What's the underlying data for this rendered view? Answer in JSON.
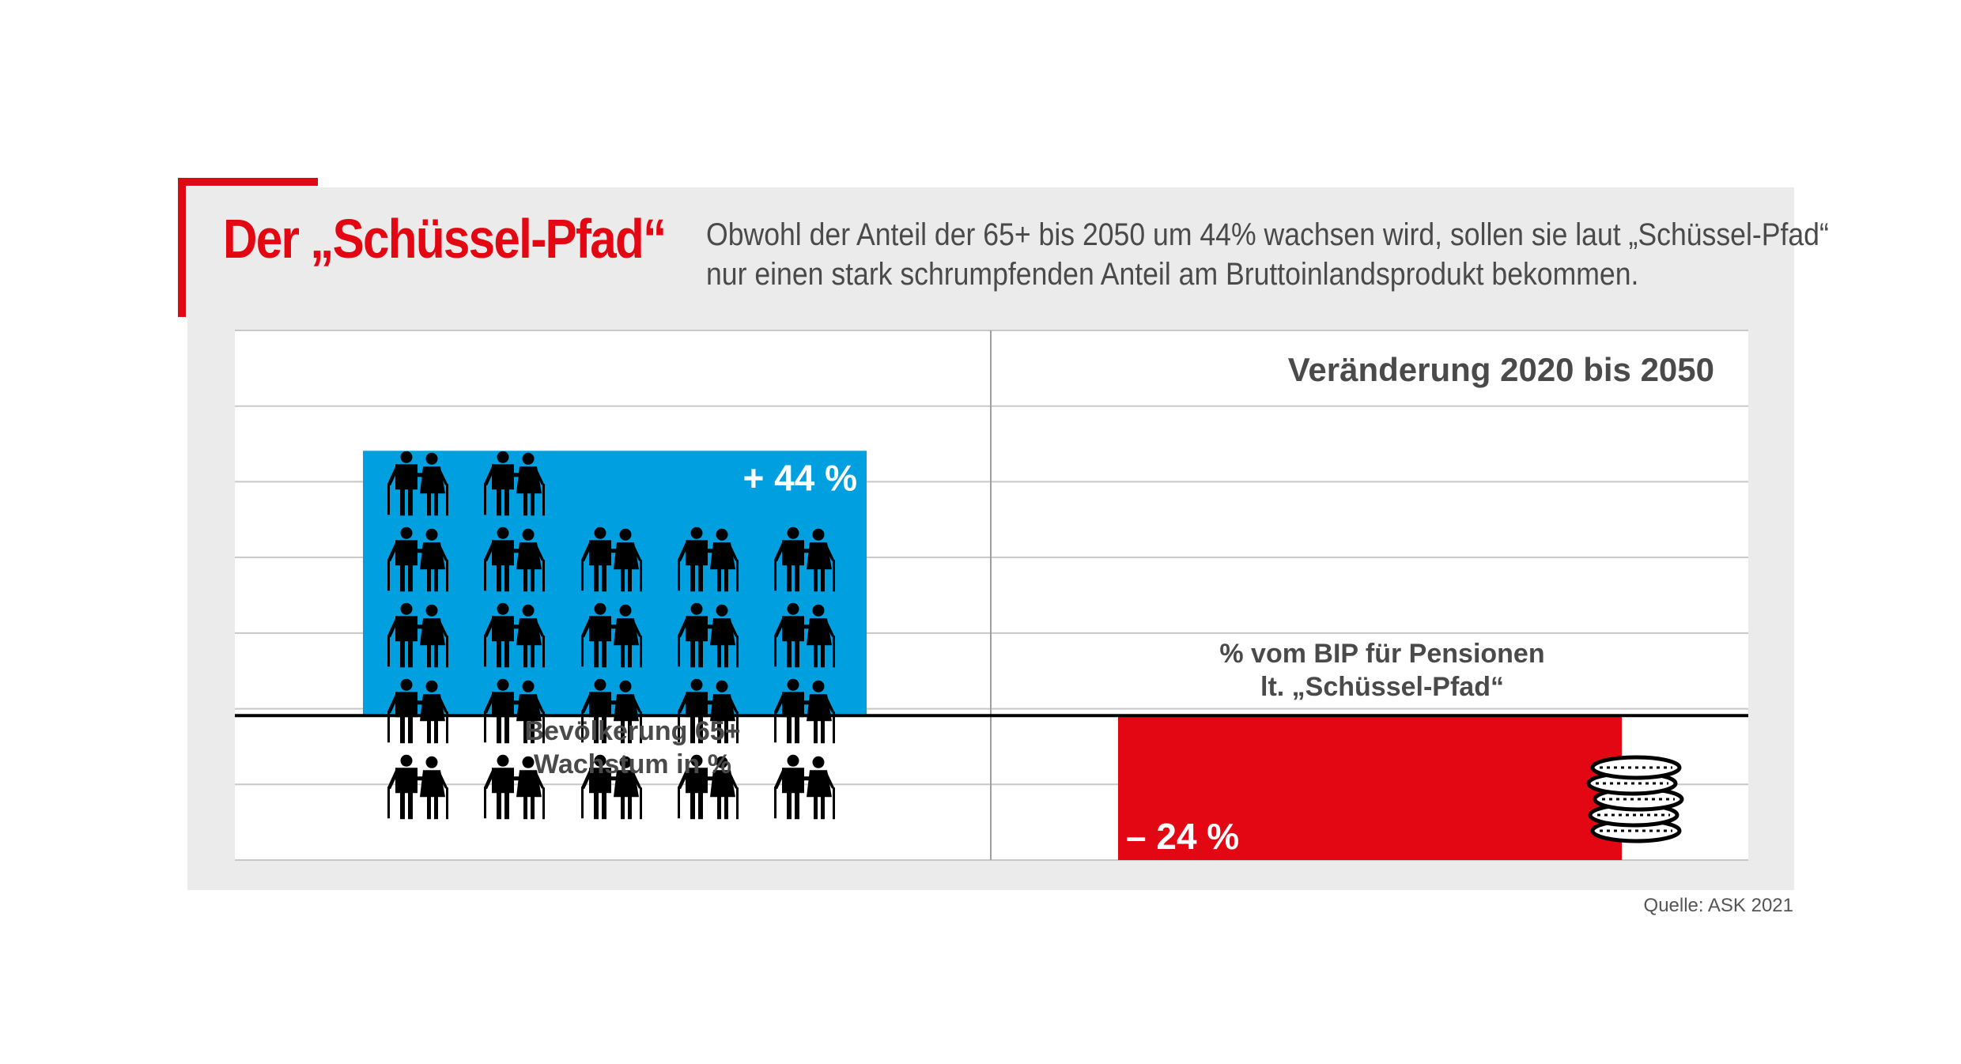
{
  "title": "Der „Schüssel-Pfad“",
  "subtitle": "Obwohl der Anteil der 65+ bis 2050 um 44% wachsen wird, sollen sie laut „Schüssel-Pfad“ nur einen stark schrumpfenden Anteil am Bruttoinlandsprodukt bekommen.",
  "source": "Quelle: ASK 2021",
  "colors": {
    "accent": "#e30613",
    "population_bar": "#009fdf",
    "pension_bar": "#e30613",
    "panel": "#ebebeb"
  },
  "icons": {
    "population_bar": "elderly-couple-icon",
    "pension_bar": "coin-stack-icon"
  },
  "chart_data": {
    "type": "bar",
    "title": "Veränderung 2020 bis 2050",
    "ylim": [
      -24,
      64
    ],
    "grid": true,
    "categories": [
      "Bevölkerung 65+\nWachstum in %",
      "% vom BIP für Pensionen\nlt. „Schüssel-Pfad“"
    ],
    "values": [
      44,
      -24
    ],
    "value_labels": [
      "+ 44 %",
      "– 24 %"
    ]
  }
}
